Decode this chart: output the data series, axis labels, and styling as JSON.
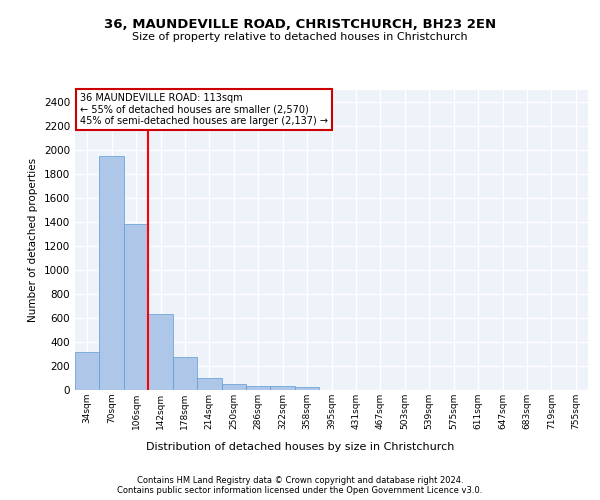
{
  "title1": "36, MAUNDEVILLE ROAD, CHRISTCHURCH, BH23 2EN",
  "title2": "Size of property relative to detached houses in Christchurch",
  "xlabel": "Distribution of detached houses by size in Christchurch",
  "ylabel": "Number of detached properties",
  "footer1": "Contains HM Land Registry data © Crown copyright and database right 2024.",
  "footer2": "Contains public sector information licensed under the Open Government Licence v3.0.",
  "bin_labels": [
    "34sqm",
    "70sqm",
    "106sqm",
    "142sqm",
    "178sqm",
    "214sqm",
    "250sqm",
    "286sqm",
    "322sqm",
    "358sqm",
    "395sqm",
    "431sqm",
    "467sqm",
    "503sqm",
    "539sqm",
    "575sqm",
    "611sqm",
    "647sqm",
    "683sqm",
    "719sqm",
    "755sqm"
  ],
  "bar_values": [
    315,
    1950,
    1380,
    630,
    275,
    100,
    48,
    35,
    30,
    22,
    0,
    0,
    0,
    0,
    0,
    0,
    0,
    0,
    0,
    0,
    0
  ],
  "bar_color": "#aec6e8",
  "bar_edge_color": "#5b9bd5",
  "ylim": [
    0,
    2500
  ],
  "yticks": [
    0,
    200,
    400,
    600,
    800,
    1000,
    1200,
    1400,
    1600,
    1800,
    2000,
    2200,
    2400
  ],
  "annotation_text": "36 MAUNDEVILLE ROAD: 113sqm\n← 55% of detached houses are smaller (2,570)\n45% of semi-detached houses are larger (2,137) →",
  "annotation_box_color": "#ffffff",
  "annotation_box_edge": "#cc0000",
  "background_color": "#eef2f9",
  "grid_color": "#ffffff"
}
